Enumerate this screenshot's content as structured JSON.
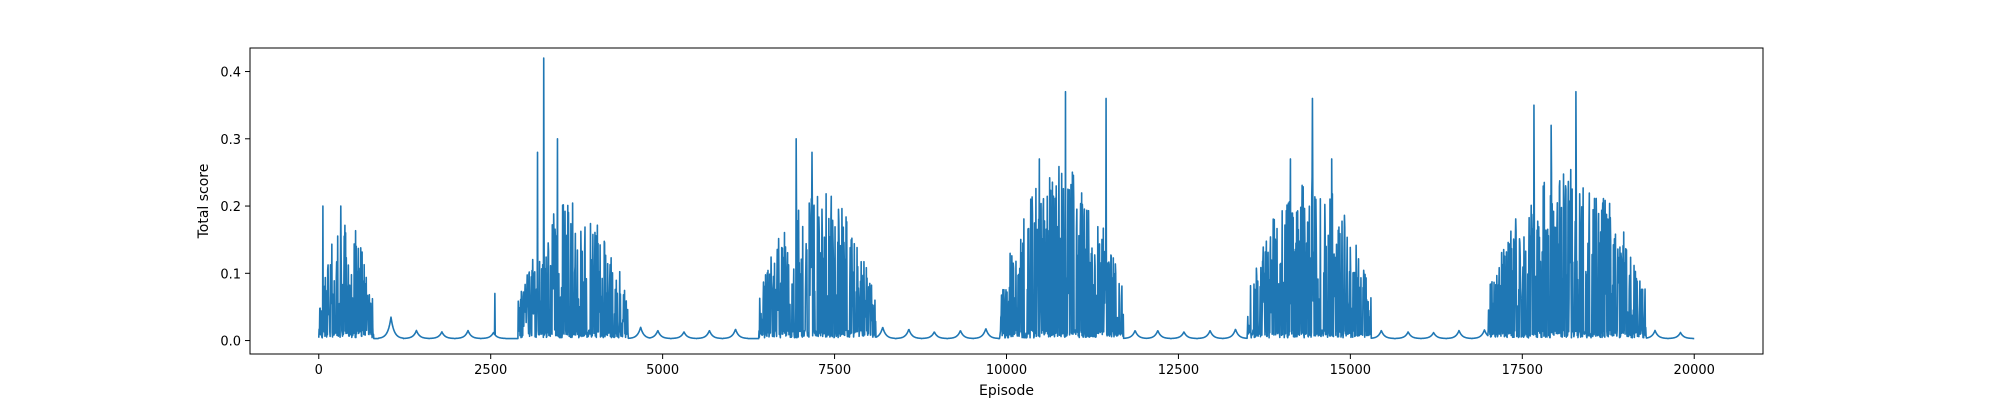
{
  "chart_data": {
    "type": "line",
    "title": "",
    "xlabel": "Episode",
    "ylabel": "Total score",
    "xlim": [
      -1000,
      21000
    ],
    "ylim": [
      -0.02,
      0.435
    ],
    "x_ticks": [
      0,
      2500,
      5000,
      7500,
      10000,
      12500,
      15000,
      17500,
      20000
    ],
    "x_tick_labels": [
      "0",
      "2500",
      "5000",
      "7500",
      "10000",
      "12500",
      "15000",
      "17500",
      "20000"
    ],
    "y_ticks": [
      0.0,
      0.1,
      0.2,
      0.3,
      0.4
    ],
    "y_tick_labels": [
      "0.0",
      "0.1",
      "0.2",
      "0.3",
      "0.4"
    ],
    "grid": false,
    "legend": "none",
    "series": [
      {
        "color": "#1f77b4",
        "x_range": [
          0,
          20000
        ],
        "baseline_value": 0.003,
        "quiet_bumps": [
          {
            "x": 1050,
            "value": 0.035
          },
          {
            "x": 1420,
            "value": 0.015
          },
          {
            "x": 1790,
            "value": 0.013
          },
          {
            "x": 2170,
            "value": 0.015
          },
          {
            "x": 2540,
            "value": 0.012
          },
          {
            "x": 4680,
            "value": 0.02
          },
          {
            "x": 4930,
            "value": 0.015
          },
          {
            "x": 5310,
            "value": 0.013
          },
          {
            "x": 5680,
            "value": 0.015
          },
          {
            "x": 6060,
            "value": 0.017
          },
          {
            "x": 8200,
            "value": 0.02
          },
          {
            "x": 8580,
            "value": 0.017
          },
          {
            "x": 8950,
            "value": 0.013
          },
          {
            "x": 9330,
            "value": 0.015
          },
          {
            "x": 9700,
            "value": 0.018
          },
          {
            "x": 11870,
            "value": 0.015
          },
          {
            "x": 12200,
            "value": 0.015
          },
          {
            "x": 12580,
            "value": 0.013
          },
          {
            "x": 12960,
            "value": 0.015
          },
          {
            "x": 13330,
            "value": 0.017
          },
          {
            "x": 15450,
            "value": 0.015
          },
          {
            "x": 15840,
            "value": 0.013
          },
          {
            "x": 16210,
            "value": 0.012
          },
          {
            "x": 16580,
            "value": 0.015
          },
          {
            "x": 16950,
            "value": 0.016
          },
          {
            "x": 19430,
            "value": 0.015
          },
          {
            "x": 19800,
            "value": 0.012
          }
        ],
        "active_bursts": [
          {
            "start": 0,
            "end": 800,
            "typical_peak": 0.11,
            "max_peak": 0.2
          },
          {
            "start": 2900,
            "end": 4500,
            "typical_peak": 0.13,
            "max_peak": 0.42
          },
          {
            "start": 6400,
            "end": 8100,
            "typical_peak": 0.14,
            "max_peak": 0.3
          },
          {
            "start": 9900,
            "end": 11700,
            "typical_peak": 0.16,
            "max_peak": 0.37
          },
          {
            "start": 13500,
            "end": 15300,
            "typical_peak": 0.15,
            "max_peak": 0.36
          },
          {
            "start": 17000,
            "end": 19300,
            "typical_peak": 0.16,
            "max_peak": 0.37
          }
        ],
        "notable_peaks": [
          {
            "x": 60,
            "value": 0.2
          },
          {
            "x": 320,
            "value": 0.2
          },
          {
            "x": 2560,
            "value": 0.07
          },
          {
            "x": 3180,
            "value": 0.28
          },
          {
            "x": 3270,
            "value": 0.42
          },
          {
            "x": 3470,
            "value": 0.3
          },
          {
            "x": 6940,
            "value": 0.3
          },
          {
            "x": 7170,
            "value": 0.28
          },
          {
            "x": 10480,
            "value": 0.27
          },
          {
            "x": 10860,
            "value": 0.37
          },
          {
            "x": 11450,
            "value": 0.36
          },
          {
            "x": 14130,
            "value": 0.27
          },
          {
            "x": 14450,
            "value": 0.36
          },
          {
            "x": 14730,
            "value": 0.27
          },
          {
            "x": 17670,
            "value": 0.35
          },
          {
            "x": 17920,
            "value": 0.32
          },
          {
            "x": 18280,
            "value": 0.37
          }
        ]
      }
    ]
  }
}
